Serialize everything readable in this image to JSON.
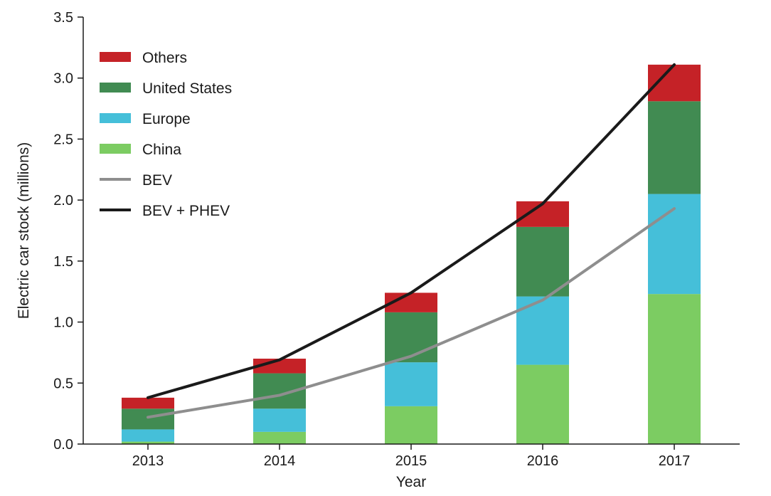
{
  "chart_data": {
    "type": "bar",
    "stacked": true,
    "xlabel": "Year",
    "ylabel": "Electric car stock (millions)",
    "ylim": [
      0,
      3.5
    ],
    "yticks": [
      "0.0",
      "0.5",
      "1.0",
      "1.5",
      "2.0",
      "2.5",
      "3.0",
      "3.5"
    ],
    "categories": [
      "2013",
      "2014",
      "2015",
      "2016",
      "2017"
    ],
    "series": [
      {
        "name": "China",
        "kind": "bar",
        "color": "#7ccc62",
        "values": [
          0.02,
          0.1,
          0.31,
          0.65,
          1.23
        ]
      },
      {
        "name": "Europe",
        "kind": "bar",
        "color": "#45bfd9",
        "values": [
          0.1,
          0.19,
          0.36,
          0.56,
          0.82
        ]
      },
      {
        "name": "United States",
        "kind": "bar",
        "color": "#418b52",
        "values": [
          0.17,
          0.29,
          0.41,
          0.57,
          0.76
        ]
      },
      {
        "name": "Others",
        "kind": "bar",
        "color": "#c52227",
        "values": [
          0.09,
          0.12,
          0.16,
          0.21,
          0.3
        ]
      },
      {
        "name": "BEV",
        "kind": "line",
        "color": "#8e8e8e",
        "values": [
          0.22,
          0.4,
          0.72,
          1.18,
          1.93
        ]
      },
      {
        "name": "BEV + PHEV",
        "kind": "line",
        "color": "#1a1a1a",
        "values": [
          0.38,
          0.69,
          1.24,
          1.97,
          3.11
        ]
      }
    ],
    "legend": {
      "placement": "top-left",
      "order": [
        "Others",
        "United States",
        "Europe",
        "China",
        "BEV",
        "BEV + PHEV"
      ]
    },
    "grid": false
  }
}
